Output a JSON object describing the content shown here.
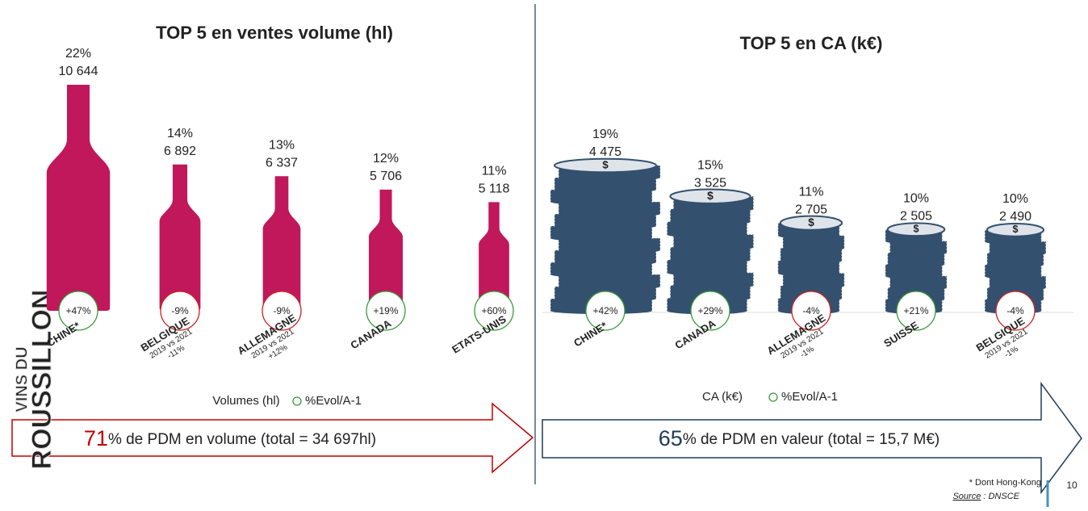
{
  "chart_data": [
    {
      "type": "bottle",
      "title": "TOP 5 en ventes volume (hl)",
      "categories": [
        "CHINE*",
        "BELGIQUE",
        "ALLEMAGNE",
        "CANADA",
        "ETATS-UNIS"
      ],
      "category_notes": [
        null,
        {
          "lines": [
            "2019 vs 2021",
            "-11%"
          ],
          "color": "#c00000"
        },
        {
          "lines": [
            "2019 vs 2021",
            "+12%"
          ],
          "color": "#2e8b2e"
        },
        null,
        null
      ],
      "series": [
        {
          "name": "Volumes (hl)",
          "color": "#c0185a",
          "values": [
            10644,
            6892,
            6337,
            5706,
            5118
          ],
          "value_labels": [
            "10 644",
            "6 892",
            "6 337",
            "5 706",
            "5 118"
          ]
        },
        {
          "name": "%Evol/A-1",
          "positive_color": "#3a9a3a",
          "negative_color": "#d02020",
          "values": [
            47,
            -9,
            -9,
            19,
            60
          ],
          "value_labels": [
            "+47%",
            "-9%",
            "-9%",
            "+19%",
            "+60%"
          ]
        }
      ],
      "shares": {
        "values": [
          22,
          14,
          13,
          12,
          11
        ],
        "value_labels": [
          "22%",
          "14%",
          "13%",
          "12%",
          "11%"
        ]
      },
      "summary": {
        "big": "71",
        "text": "% de PDM en volume (total = 34 697hl)",
        "color": "#c00000"
      }
    },
    {
      "type": "coins",
      "title": "TOP 5 en CA (k€)",
      "categories": [
        "CHINE*",
        "CANADA",
        "ALLEMAGNE",
        "SUISSE",
        "BELGIQUE"
      ],
      "category_notes": [
        null,
        null,
        {
          "lines": [
            "2019 vs 2021",
            "-1%"
          ],
          "color": "#c00000"
        },
        null,
        {
          "lines": [
            "2019 vs 2021",
            "-1%"
          ],
          "color": "#c00000"
        }
      ],
      "series": [
        {
          "name": "CA (k€)",
          "color": "#34506f",
          "values": [
            4475,
            3525,
            2705,
            2505,
            2490
          ],
          "value_labels": [
            "4 475",
            "3 525",
            "2 705",
            "2 505",
            "2 490"
          ]
        },
        {
          "name": "%Evol/A-1",
          "positive_color": "#3a9a3a",
          "negative_color": "#d02020",
          "values": [
            42,
            29,
            -4,
            21,
            -4
          ],
          "value_labels": [
            "+42%",
            "+29%",
            "-4%",
            "+21%",
            "-4%"
          ]
        }
      ],
      "shares": {
        "values": [
          19,
          15,
          11,
          10,
          10
        ],
        "value_labels": [
          "19%",
          "15%",
          "11%",
          "10%",
          "10%"
        ]
      },
      "summary": {
        "big": "65",
        "text": "% de PDM en valeur (total = 15,7 M€)",
        "color": "#1f3b5a"
      }
    }
  ],
  "footer": {
    "note": "* Dont Hong-Kong",
    "source_label": "Source",
    "source_text": " : DNSCE",
    "page": "10"
  },
  "watermark": [
    "VINS DU",
    "ROUSSILLON"
  ]
}
